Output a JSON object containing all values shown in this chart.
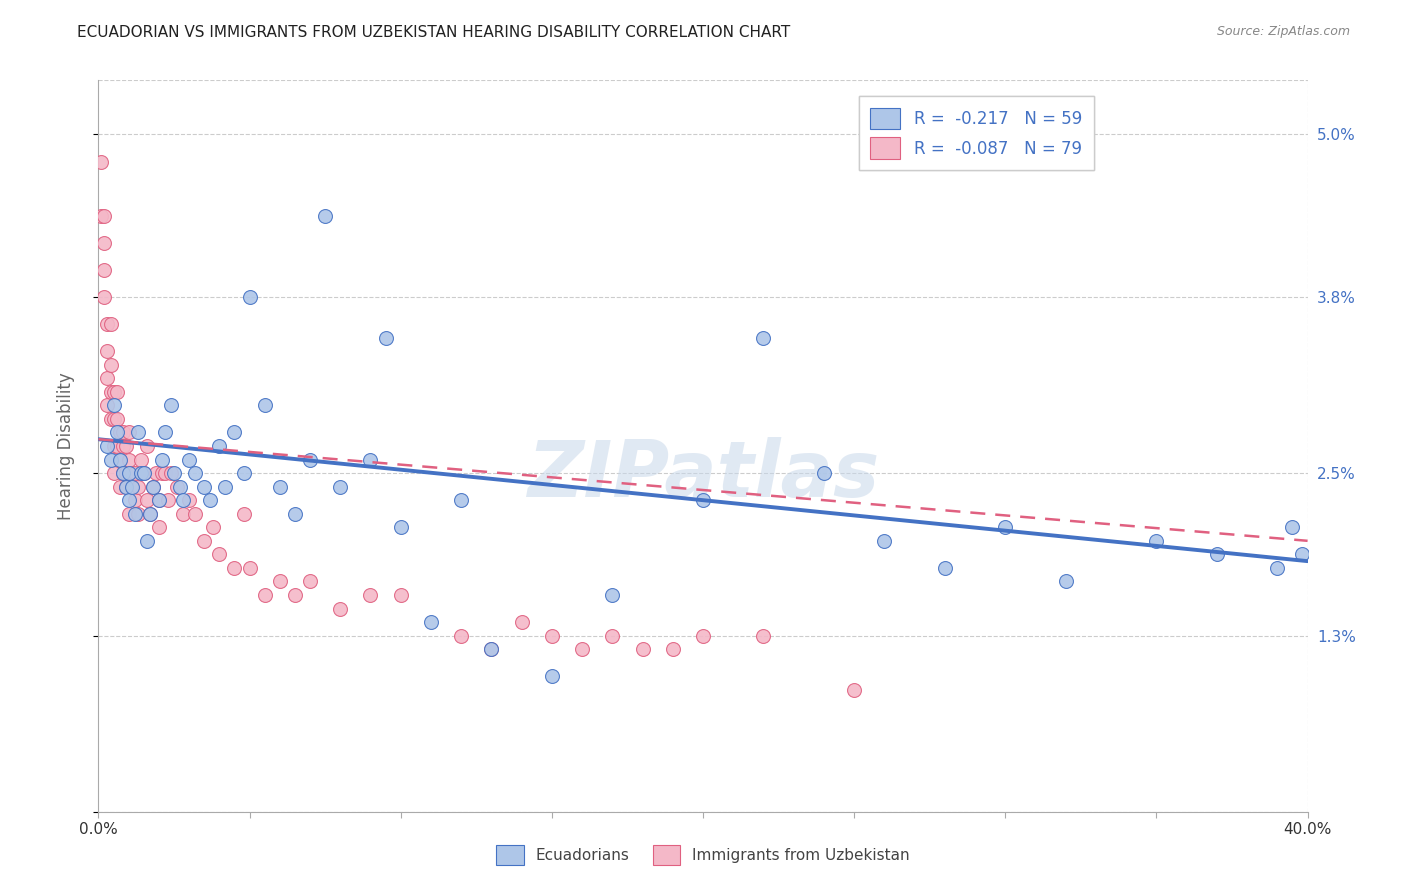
{
  "title": "ECUADORIAN VS IMMIGRANTS FROM UZBEKISTAN HEARING DISABILITY CORRELATION CHART",
  "source": "Source: ZipAtlas.com",
  "ylabel": "Hearing Disability",
  "yticks": [
    0.0,
    0.013,
    0.025,
    0.038,
    0.05
  ],
  "ytick_labels": [
    "",
    "1.3%",
    "2.5%",
    "3.8%",
    "5.0%"
  ],
  "xticks": [
    0.0,
    0.05,
    0.1,
    0.15,
    0.2,
    0.25,
    0.3,
    0.35,
    0.4
  ],
  "xtick_labels": [
    "0.0%",
    "",
    "",
    "",
    "",
    "",
    "",
    "",
    "40.0%"
  ],
  "blue_color": "#aec6e8",
  "blue_line_color": "#4472c4",
  "pink_color": "#f4b8c8",
  "pink_line_color": "#e06080",
  "watermark": "ZIPatlas",
  "blue_scatter_x": [
    0.003,
    0.004,
    0.005,
    0.006,
    0.007,
    0.008,
    0.009,
    0.01,
    0.01,
    0.011,
    0.012,
    0.013,
    0.014,
    0.015,
    0.016,
    0.017,
    0.018,
    0.02,
    0.021,
    0.022,
    0.024,
    0.025,
    0.027,
    0.028,
    0.03,
    0.032,
    0.035,
    0.037,
    0.04,
    0.042,
    0.045,
    0.048,
    0.05,
    0.055,
    0.06,
    0.065,
    0.07,
    0.075,
    0.08,
    0.09,
    0.095,
    0.1,
    0.11,
    0.12,
    0.13,
    0.15,
    0.17,
    0.2,
    0.22,
    0.24,
    0.26,
    0.28,
    0.3,
    0.32,
    0.35,
    0.37,
    0.39,
    0.395,
    0.398
  ],
  "blue_scatter_y": [
    0.027,
    0.026,
    0.03,
    0.028,
    0.026,
    0.025,
    0.024,
    0.023,
    0.025,
    0.024,
    0.022,
    0.028,
    0.025,
    0.025,
    0.02,
    0.022,
    0.024,
    0.023,
    0.026,
    0.028,
    0.03,
    0.025,
    0.024,
    0.023,
    0.026,
    0.025,
    0.024,
    0.023,
    0.027,
    0.024,
    0.028,
    0.025,
    0.038,
    0.03,
    0.024,
    0.022,
    0.026,
    0.044,
    0.024,
    0.026,
    0.035,
    0.021,
    0.014,
    0.023,
    0.012,
    0.01,
    0.016,
    0.023,
    0.035,
    0.025,
    0.02,
    0.018,
    0.021,
    0.017,
    0.02,
    0.019,
    0.018,
    0.021,
    0.019
  ],
  "pink_scatter_x": [
    0.001,
    0.001,
    0.002,
    0.002,
    0.002,
    0.002,
    0.003,
    0.003,
    0.003,
    0.003,
    0.004,
    0.004,
    0.004,
    0.004,
    0.005,
    0.005,
    0.005,
    0.005,
    0.006,
    0.006,
    0.006,
    0.007,
    0.007,
    0.007,
    0.008,
    0.008,
    0.008,
    0.009,
    0.009,
    0.009,
    0.01,
    0.01,
    0.01,
    0.011,
    0.012,
    0.012,
    0.013,
    0.013,
    0.014,
    0.015,
    0.016,
    0.016,
    0.017,
    0.018,
    0.019,
    0.02,
    0.02,
    0.021,
    0.022,
    0.023,
    0.024,
    0.026,
    0.028,
    0.03,
    0.032,
    0.035,
    0.038,
    0.04,
    0.045,
    0.048,
    0.05,
    0.055,
    0.06,
    0.065,
    0.07,
    0.08,
    0.09,
    0.1,
    0.12,
    0.13,
    0.14,
    0.15,
    0.16,
    0.17,
    0.18,
    0.19,
    0.2,
    0.22,
    0.25
  ],
  "pink_scatter_y": [
    0.048,
    0.044,
    0.044,
    0.042,
    0.04,
    0.038,
    0.036,
    0.034,
    0.032,
    0.03,
    0.036,
    0.033,
    0.031,
    0.029,
    0.031,
    0.029,
    0.027,
    0.025,
    0.031,
    0.029,
    0.027,
    0.028,
    0.026,
    0.024,
    0.028,
    0.027,
    0.025,
    0.027,
    0.025,
    0.024,
    0.028,
    0.026,
    0.022,
    0.025,
    0.025,
    0.023,
    0.024,
    0.022,
    0.026,
    0.025,
    0.027,
    0.023,
    0.022,
    0.024,
    0.025,
    0.023,
    0.021,
    0.025,
    0.025,
    0.023,
    0.025,
    0.024,
    0.022,
    0.023,
    0.022,
    0.02,
    0.021,
    0.019,
    0.018,
    0.022,
    0.018,
    0.016,
    0.017,
    0.016,
    0.017,
    0.015,
    0.016,
    0.016,
    0.013,
    0.012,
    0.014,
    0.013,
    0.012,
    0.013,
    0.012,
    0.012,
    0.013,
    0.013,
    0.009
  ],
  "blue_trendline_x": [
    0.0,
    0.4
  ],
  "blue_trendline_y": [
    0.0275,
    0.0185
  ],
  "pink_trendline_x": [
    0.0,
    0.4
  ],
  "pink_trendline_y": [
    0.0275,
    0.02
  ],
  "bg_color": "#ffffff",
  "grid_color": "#cccccc",
  "right_axis_color": "#4472c4",
  "legend_blue_label": "R =  -0.217   N = 59",
  "legend_pink_label": "R =  -0.087   N = 79",
  "legend_ecuadorians": "Ecuadorians",
  "legend_immigrants": "Immigrants from Uzbekistan",
  "ylim": [
    0.0,
    0.054
  ],
  "xlim": [
    0.0,
    0.4
  ]
}
